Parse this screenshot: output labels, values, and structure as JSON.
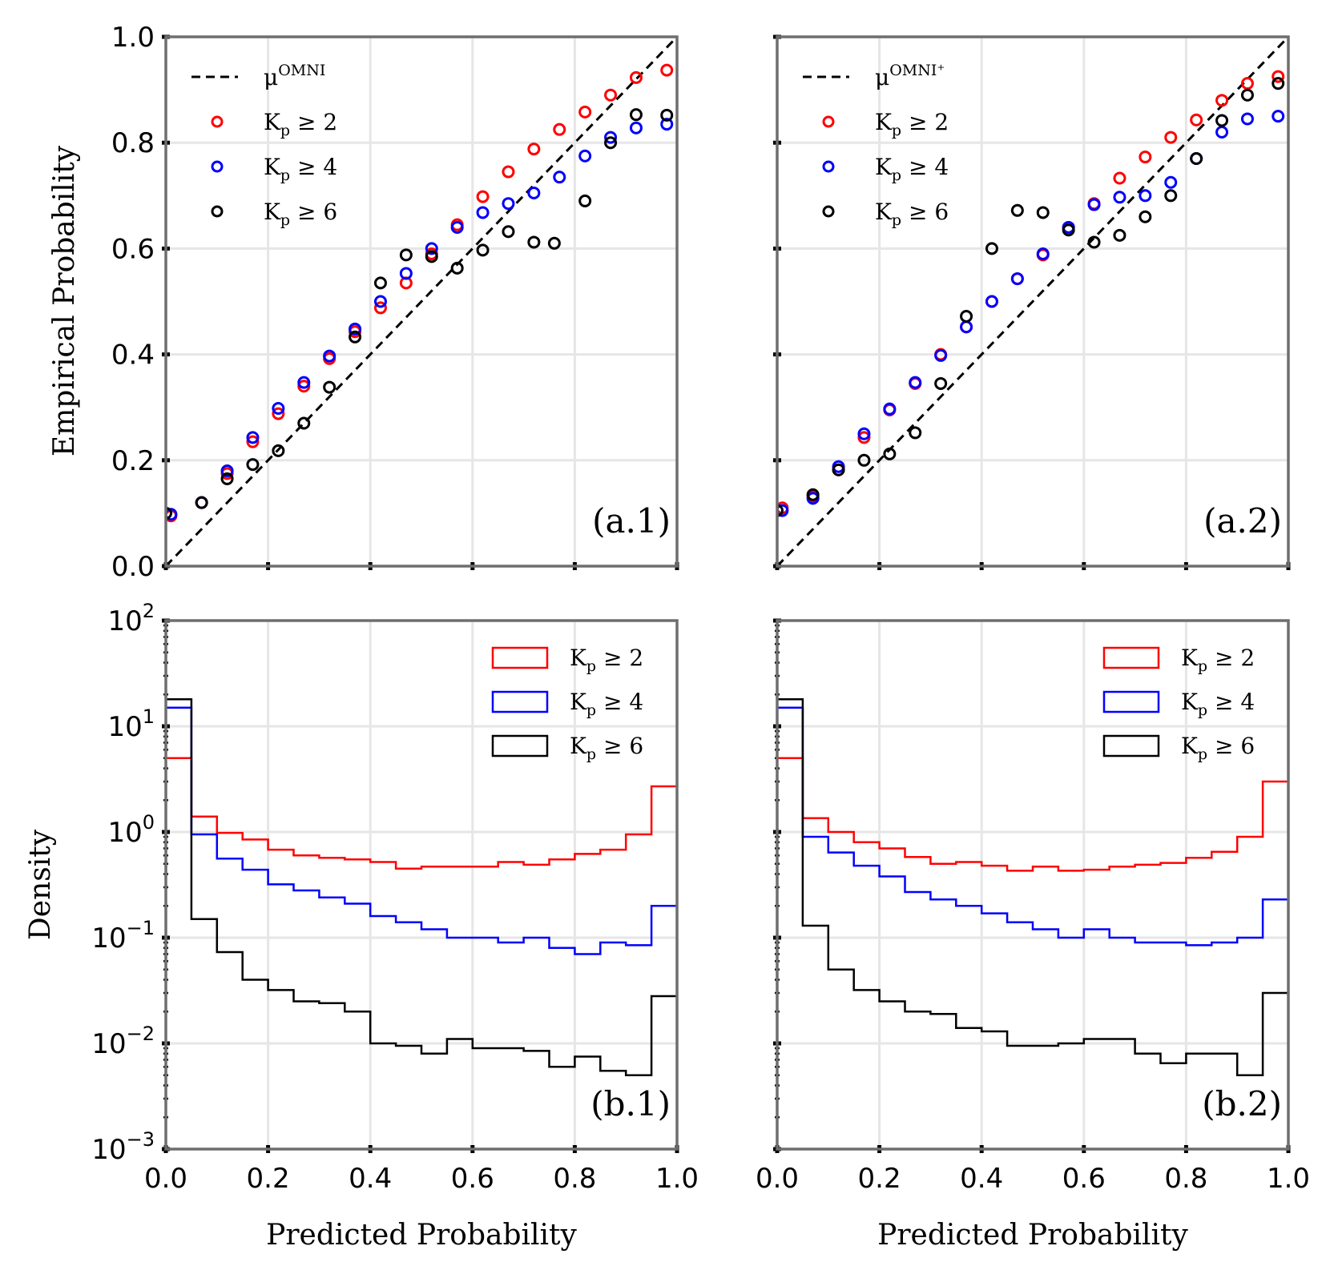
{
  "figure": {
    "x_axis_label": "Predicted Probability",
    "y_axis_label_top": "Empirical Probability",
    "y_axis_label_bottom": "Density",
    "colors": {
      "kp2": "#ff0000",
      "kp4": "#0000ff",
      "kp6": "#000000",
      "grid": "#e6e6e6",
      "frame": "#6e6e6e"
    }
  },
  "chart_data": [
    {
      "type": "scatter",
      "panel_label": "(a.1)",
      "xlim": [
        0,
        1
      ],
      "ylim": [
        0,
        1
      ],
      "x_ticks": [
        "0.0",
        "0.2",
        "0.4",
        "0.6",
        "0.8",
        "1.0"
      ],
      "y_ticks": [
        "0.0",
        "0.2",
        "0.4",
        "0.6",
        "0.8",
        "1.0"
      ],
      "grid": true,
      "legend_position": "top-left",
      "reference_line": {
        "label": "μ",
        "label_superscript": "OMNI",
        "x": [
          0,
          1
        ],
        "y": [
          0,
          1
        ],
        "style": "dashed"
      },
      "series": [
        {
          "name": "Kp ≥ 2",
          "label_main": "K",
          "label_sub": "p",
          "label_rest": " ≥ 2",
          "color": "#ff0000",
          "x": [
            0.01,
            0.07,
            0.12,
            0.17,
            0.22,
            0.27,
            0.32,
            0.37,
            0.42,
            0.47,
            0.52,
            0.57,
            0.62,
            0.67,
            0.72,
            0.77,
            0.82,
            0.87,
            0.92,
            0.98
          ],
          "y": [
            0.095,
            0.12,
            0.175,
            0.235,
            0.288,
            0.34,
            0.392,
            0.443,
            0.488,
            0.535,
            0.59,
            0.645,
            0.698,
            0.745,
            0.788,
            0.825,
            0.858,
            0.89,
            0.923,
            0.937
          ]
        },
        {
          "name": "Kp ≥ 4",
          "label_main": "K",
          "label_sub": "p",
          "label_rest": " ≥ 4",
          "color": "#0000ff",
          "x": [
            0.01,
            0.07,
            0.12,
            0.17,
            0.22,
            0.27,
            0.32,
            0.37,
            0.42,
            0.47,
            0.52,
            0.57,
            0.62,
            0.67,
            0.72,
            0.77,
            0.82,
            0.87,
            0.92,
            0.98
          ],
          "y": [
            0.098,
            0.12,
            0.18,
            0.243,
            0.298,
            0.347,
            0.397,
            0.448,
            0.5,
            0.553,
            0.6,
            0.64,
            0.668,
            0.685,
            0.705,
            0.735,
            0.775,
            0.81,
            0.828,
            0.835
          ]
        },
        {
          "name": "Kp ≥ 6",
          "label_main": "K",
          "label_sub": "p",
          "label_rest": " ≥ 6",
          "color": "#000000",
          "x": [
            0.0,
            0.07,
            0.12,
            0.17,
            0.22,
            0.27,
            0.32,
            0.37,
            0.42,
            0.47,
            0.52,
            0.57,
            0.62,
            0.67,
            0.72,
            0.76,
            0.82,
            0.87,
            0.92,
            0.98
          ],
          "y": [
            0.1,
            0.12,
            0.165,
            0.192,
            0.218,
            0.27,
            0.338,
            0.433,
            0.535,
            0.588,
            0.585,
            0.563,
            0.597,
            0.632,
            0.612,
            0.61,
            0.69,
            0.8,
            0.853,
            0.852
          ]
        }
      ]
    },
    {
      "type": "scatter",
      "panel_label": "(a.2)",
      "xlim": [
        0,
        1
      ],
      "ylim": [
        0,
        1
      ],
      "x_ticks": [
        "0.0",
        "0.2",
        "0.4",
        "0.6",
        "0.8",
        "1.0"
      ],
      "y_ticks": [],
      "grid": true,
      "legend_position": "top-left",
      "reference_line": {
        "label": "μ",
        "label_superscript": "OMNI⁺",
        "x": [
          0,
          1
        ],
        "y": [
          0,
          1
        ],
        "style": "dashed"
      },
      "series": [
        {
          "name": "Kp ≥ 2",
          "label_main": "K",
          "label_sub": "p",
          "label_rest": " ≥ 2",
          "color": "#ff0000",
          "x": [
            0.01,
            0.07,
            0.12,
            0.17,
            0.22,
            0.27,
            0.32,
            0.37,
            0.42,
            0.47,
            0.52,
            0.57,
            0.62,
            0.67,
            0.72,
            0.77,
            0.82,
            0.87,
            0.92,
            0.98
          ],
          "y": [
            0.11,
            0.132,
            0.182,
            0.243,
            0.295,
            0.345,
            0.4,
            0.452,
            0.5,
            0.543,
            0.588,
            0.64,
            0.685,
            0.733,
            0.773,
            0.81,
            0.843,
            0.88,
            0.912,
            0.925
          ]
        },
        {
          "name": "Kp ≥ 4",
          "label_main": "K",
          "label_sub": "p",
          "label_rest": " ≥ 4",
          "color": "#0000ff",
          "x": [
            0.01,
            0.07,
            0.12,
            0.17,
            0.22,
            0.27,
            0.32,
            0.37,
            0.42,
            0.47,
            0.52,
            0.57,
            0.62,
            0.67,
            0.72,
            0.77,
            0.82,
            0.87,
            0.92,
            0.98
          ],
          "y": [
            0.105,
            0.128,
            0.188,
            0.25,
            0.297,
            0.347,
            0.398,
            0.452,
            0.5,
            0.543,
            0.59,
            0.64,
            0.683,
            0.697,
            0.7,
            0.725,
            0.77,
            0.82,
            0.845,
            0.85
          ]
        },
        {
          "name": "Kp ≥ 6",
          "label_main": "K",
          "label_sub": "p",
          "label_rest": " ≥ 6",
          "color": "#000000",
          "x": [
            0.0,
            0.07,
            0.12,
            0.17,
            0.22,
            0.27,
            0.32,
            0.37,
            0.42,
            0.47,
            0.52,
            0.57,
            0.62,
            0.67,
            0.72,
            0.77,
            0.82,
            0.87,
            0.92,
            0.98
          ],
          "y": [
            0.105,
            0.135,
            0.182,
            0.2,
            0.212,
            0.252,
            0.345,
            0.472,
            0.6,
            0.672,
            0.668,
            0.635,
            0.612,
            0.625,
            0.66,
            0.7,
            0.77,
            0.842,
            0.89,
            0.912
          ]
        }
      ]
    },
    {
      "type": "histogram",
      "panel_label": "(b.1)",
      "xlim": [
        0,
        1
      ],
      "ylim": [
        0.001,
        100
      ],
      "y_scale": "log",
      "x_ticks": [
        "0.0",
        "0.2",
        "0.4",
        "0.6",
        "0.8",
        "1.0"
      ],
      "y_ticks": [
        {
          "base": "10",
          "exp": "2"
        },
        {
          "base": "10",
          "exp": "1"
        },
        {
          "base": "10",
          "exp": "0"
        },
        {
          "base": "10",
          "exp": "−1"
        },
        {
          "base": "10",
          "exp": "−2"
        },
        {
          "base": "10",
          "exp": "−3"
        }
      ],
      "grid": true,
      "legend_position": "top-right",
      "bin_edges": [
        0,
        0.05,
        0.1,
        0.15,
        0.2,
        0.25,
        0.3,
        0.35,
        0.4,
        0.45,
        0.5,
        0.55,
        0.6,
        0.65,
        0.7,
        0.75,
        0.8,
        0.85,
        0.9,
        0.95,
        1.0
      ],
      "series": [
        {
          "name": "Kp ≥ 2",
          "label_main": "K",
          "label_sub": "p",
          "label_rest": " ≥ 2",
          "color": "#ff0000",
          "values": [
            5.0,
            1.4,
            0.98,
            0.85,
            0.68,
            0.6,
            0.57,
            0.55,
            0.52,
            0.45,
            0.47,
            0.47,
            0.47,
            0.52,
            0.49,
            0.55,
            0.62,
            0.68,
            0.95,
            2.7
          ]
        },
        {
          "name": "Kp ≥ 4",
          "label_main": "K",
          "label_sub": "p",
          "label_rest": " ≥ 4",
          "color": "#0000ff",
          "values": [
            15.0,
            0.95,
            0.56,
            0.44,
            0.32,
            0.28,
            0.24,
            0.21,
            0.16,
            0.14,
            0.12,
            0.1,
            0.1,
            0.09,
            0.1,
            0.08,
            0.07,
            0.09,
            0.085,
            0.2
          ]
        },
        {
          "name": "Kp ≥ 6",
          "label_main": "K",
          "label_sub": "p",
          "label_rest": " ≥ 6",
          "color": "#000000",
          "values": [
            18.0,
            0.15,
            0.073,
            0.04,
            0.032,
            0.025,
            0.024,
            0.02,
            0.01,
            0.0095,
            0.008,
            0.011,
            0.009,
            0.009,
            0.0085,
            0.006,
            0.0075,
            0.0055,
            0.005,
            0.028
          ]
        }
      ]
    },
    {
      "type": "histogram",
      "panel_label": "(b.2)",
      "xlim": [
        0,
        1
      ],
      "ylim": [
        0.001,
        100
      ],
      "y_scale": "log",
      "x_ticks": [
        "0.0",
        "0.2",
        "0.4",
        "0.6",
        "0.8",
        "1.0"
      ],
      "y_ticks": [],
      "grid": true,
      "legend_position": "top-right",
      "bin_edges": [
        0,
        0.05,
        0.1,
        0.15,
        0.2,
        0.25,
        0.3,
        0.35,
        0.4,
        0.45,
        0.5,
        0.55,
        0.6,
        0.65,
        0.7,
        0.75,
        0.8,
        0.85,
        0.9,
        0.95,
        1.0
      ],
      "series": [
        {
          "name": "Kp ≥ 2",
          "label_main": "K",
          "label_sub": "p",
          "label_rest": " ≥ 2",
          "color": "#ff0000",
          "values": [
            5.0,
            1.35,
            1.0,
            0.8,
            0.7,
            0.58,
            0.5,
            0.52,
            0.48,
            0.43,
            0.47,
            0.43,
            0.44,
            0.47,
            0.49,
            0.51,
            0.57,
            0.65,
            0.9,
            3.0
          ]
        },
        {
          "name": "Kp ≥ 4",
          "label_main": "K",
          "label_sub": "p",
          "label_rest": " ≥ 4",
          "color": "#0000ff",
          "values": [
            15.0,
            0.9,
            0.64,
            0.48,
            0.38,
            0.27,
            0.23,
            0.2,
            0.17,
            0.14,
            0.12,
            0.1,
            0.12,
            0.1,
            0.09,
            0.09,
            0.085,
            0.09,
            0.1,
            0.23
          ]
        },
        {
          "name": "Kp ≥ 6",
          "label_main": "K",
          "label_sub": "p",
          "label_rest": " ≥ 6",
          "color": "#000000",
          "values": [
            18.0,
            0.13,
            0.05,
            0.032,
            0.025,
            0.02,
            0.019,
            0.014,
            0.013,
            0.0095,
            0.0095,
            0.01,
            0.011,
            0.011,
            0.008,
            0.0065,
            0.008,
            0.008,
            0.005,
            0.03
          ]
        }
      ]
    }
  ]
}
